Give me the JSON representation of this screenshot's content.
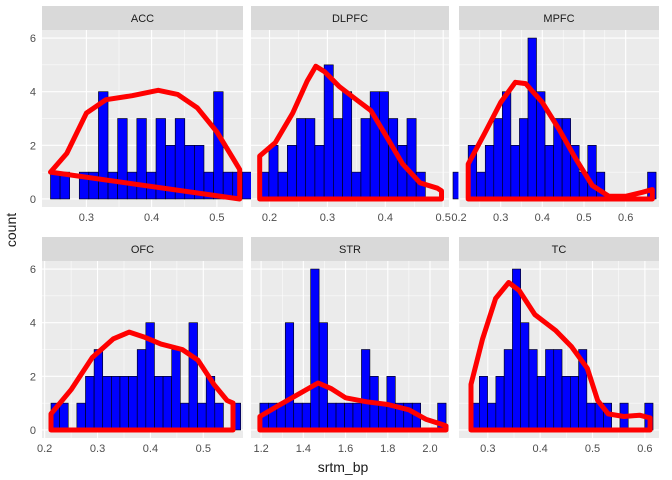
{
  "colors": {
    "panel_bg": "#EBEBEB",
    "strip_bg": "#D9D9D9",
    "grid_major": "#FFFFFF",
    "bar_fill": "#0000FF",
    "bar_stroke": "#000000",
    "density_line": "#FF0000",
    "text_dark": "#1A1A1A",
    "tick_text": "#4D4D4D"
  },
  "chart_data": {
    "type": "bar",
    "subtype": "faceted histogram with density overlay",
    "xlabel": "srtm_bp",
    "ylabel": "count",
    "grid": true,
    "legend": "none",
    "facets": [
      {
        "name": "ACC",
        "xlim": [
          0.232,
          0.54
        ],
        "ylim": [
          -0.3,
          6.3
        ],
        "x_ticks": [
          0.3,
          0.4,
          0.5
        ],
        "x_tick_labels": [
          "0.3",
          "0.4",
          "0.5"
        ],
        "y_ticks": [
          0,
          2,
          4,
          6
        ],
        "y_tick_labels": [
          "0",
          "2",
          "4",
          "6"
        ],
        "bin_start": 0.245,
        "bin_width": 0.0147,
        "counts": [
          1,
          1,
          0,
          1,
          1,
          4,
          1,
          3,
          1,
          3,
          1,
          3,
          2,
          3,
          2,
          2,
          1,
          4,
          1,
          1,
          1,
          1
        ],
        "density": [
          [
            0.245,
            1
          ],
          [
            0.27,
            1.7
          ],
          [
            0.3,
            3.2
          ],
          [
            0.33,
            3.7
          ],
          [
            0.37,
            3.85
          ],
          [
            0.41,
            4.05
          ],
          [
            0.44,
            3.9
          ],
          [
            0.47,
            3.4
          ],
          [
            0.5,
            2.5
          ],
          [
            0.525,
            1.5
          ],
          [
            0.535,
            1.1
          ],
          [
            0.535,
            0
          ]
        ]
      },
      {
        "name": "DLPFC",
        "xlim": [
          0.168,
          0.51
        ],
        "ylim": [
          -0.3,
          6.3
        ],
        "x_ticks": [
          0.2,
          0.3,
          0.4,
          0.5
        ],
        "x_tick_labels": [
          "0.2",
          "0.3",
          "0.4",
          "0.5"
        ],
        "y_ticks": [
          0,
          2,
          4,
          6
        ],
        "y_tick_labels": [
          "0",
          "2",
          "4",
          "6"
        ],
        "bin_start": 0.183,
        "bin_width": 0.0159,
        "counts": [
          1,
          2,
          1,
          2,
          3,
          3,
          2,
          5,
          3,
          4,
          1,
          3,
          4,
          4,
          3,
          2,
          3,
          1,
          0,
          0,
          0,
          1
        ],
        "density": [
          [
            0.183,
            0
          ],
          [
            0.183,
            1.6
          ],
          [
            0.21,
            2.1
          ],
          [
            0.24,
            3.2
          ],
          [
            0.265,
            4.4
          ],
          [
            0.28,
            4.95
          ],
          [
            0.295,
            4.75
          ],
          [
            0.32,
            4.2
          ],
          [
            0.35,
            3.7
          ],
          [
            0.375,
            3.3
          ],
          [
            0.4,
            2.4
          ],
          [
            0.43,
            1.3
          ],
          [
            0.46,
            0.6
          ],
          [
            0.49,
            0.4
          ],
          [
            0.497,
            0.3
          ],
          [
            0.497,
            0
          ]
        ]
      },
      {
        "name": "MPFC",
        "xlim": [
          0.2,
          0.68
        ],
        "ylim": [
          -0.3,
          6.3
        ],
        "x_ticks": [
          0.2,
          0.3,
          0.4,
          0.5,
          0.6
        ],
        "x_tick_labels": [
          "0.2",
          "0.3",
          "0.4",
          "0.5",
          "0.6"
        ],
        "y_ticks": [
          0,
          2,
          4,
          6
        ],
        "y_tick_labels": [
          "0",
          "2",
          "4",
          "6"
        ],
        "bin_start": 0.222,
        "bin_width": 0.0205,
        "counts": [
          2,
          1,
          2,
          3,
          4,
          2,
          3,
          6,
          4,
          2,
          3,
          3,
          2,
          1,
          2,
          1,
          0,
          0,
          0,
          0,
          0,
          1
        ],
        "density": [
          [
            0.222,
            0
          ],
          [
            0.222,
            1.3
          ],
          [
            0.26,
            2.4
          ],
          [
            0.3,
            3.6
          ],
          [
            0.335,
            4.35
          ],
          [
            0.36,
            4.3
          ],
          [
            0.4,
            3.6
          ],
          [
            0.44,
            2.6
          ],
          [
            0.48,
            1.5
          ],
          [
            0.52,
            0.5
          ],
          [
            0.56,
            0.1
          ],
          [
            0.6,
            0.1
          ],
          [
            0.64,
            0.25
          ],
          [
            0.664,
            0.35
          ],
          [
            0.664,
            0
          ]
        ]
      },
      {
        "name": "OFC",
        "xlim": [
          0.195,
          0.575
        ],
        "ylim": [
          -0.3,
          6.3
        ],
        "x_ticks": [
          0.2,
          0.3,
          0.4,
          0.5
        ],
        "x_tick_labels": [
          "0.2",
          "0.3",
          "0.4",
          "0.5"
        ],
        "y_ticks": [
          0,
          2,
          4,
          6
        ],
        "y_tick_labels": [
          "0",
          "2",
          "4",
          "6"
        ],
        "bin_start": 0.212,
        "bin_width": 0.0163,
        "counts": [
          1,
          1,
          0,
          1,
          2,
          3,
          2,
          2,
          2,
          2,
          3,
          4,
          2,
          2,
          3,
          1,
          4,
          1,
          2,
          1,
          0,
          1
        ],
        "density": [
          [
            0.212,
            0
          ],
          [
            0.212,
            0.6
          ],
          [
            0.25,
            1.5
          ],
          [
            0.29,
            2.7
          ],
          [
            0.33,
            3.4
          ],
          [
            0.36,
            3.65
          ],
          [
            0.39,
            3.45
          ],
          [
            0.42,
            3.2
          ],
          [
            0.46,
            3.0
          ],
          [
            0.49,
            2.6
          ],
          [
            0.52,
            1.7
          ],
          [
            0.545,
            1.1
          ],
          [
            0.556,
            1.0
          ],
          [
            0.556,
            0
          ]
        ]
      },
      {
        "name": "STR",
        "xlim": [
          1.152,
          2.09
        ],
        "ylim": [
          -0.3,
          6.3
        ],
        "x_ticks": [
          1.2,
          1.4,
          1.6,
          1.8,
          2.0
        ],
        "x_tick_labels": [
          "1.2",
          "1.4",
          "1.6",
          "1.8",
          "2.0"
        ],
        "y_ticks": [
          0,
          2,
          4,
          6
        ],
        "y_tick_labels": [
          "0",
          "2",
          "4",
          "6"
        ],
        "bin_start": 1.194,
        "bin_width": 0.0401,
        "counts": [
          1,
          1,
          1,
          4,
          1,
          1,
          6,
          4,
          1,
          1,
          1,
          1,
          3,
          2,
          1,
          2,
          1,
          1,
          1,
          0,
          0,
          1
        ],
        "density": [
          [
            1.194,
            0
          ],
          [
            1.194,
            0.5
          ],
          [
            1.28,
            0.9
          ],
          [
            1.38,
            1.35
          ],
          [
            1.47,
            1.75
          ],
          [
            1.53,
            1.55
          ],
          [
            1.6,
            1.2
          ],
          [
            1.7,
            1.05
          ],
          [
            1.8,
            0.95
          ],
          [
            1.9,
            0.75
          ],
          [
            1.98,
            0.4
          ],
          [
            2.06,
            0.2
          ],
          [
            2.076,
            0.15
          ],
          [
            2.076,
            0
          ]
        ]
      },
      {
        "name": "TC",
        "xlim": [
          0.245,
          0.627
        ],
        "ylim": [
          -0.3,
          6.3
        ],
        "x_ticks": [
          0.3,
          0.4,
          0.5,
          0.6
        ],
        "x_tick_labels": [
          "0.3",
          "0.4",
          "0.5",
          "0.6"
        ],
        "y_ticks": [
          0,
          2,
          4,
          6
        ],
        "y_tick_labels": [
          "0",
          "2",
          "4",
          "6"
        ],
        "bin_start": 0.268,
        "bin_width": 0.0158,
        "counts": [
          1,
          2,
          1,
          2,
          3,
          6,
          4,
          3,
          2,
          3,
          3,
          2,
          2,
          3,
          1,
          1,
          1,
          0,
          1,
          0,
          0,
          1
        ],
        "density": [
          [
            0.268,
            0
          ],
          [
            0.268,
            1.7
          ],
          [
            0.29,
            3.4
          ],
          [
            0.315,
            4.9
          ],
          [
            0.34,
            5.5
          ],
          [
            0.36,
            5.2
          ],
          [
            0.39,
            4.3
          ],
          [
            0.43,
            3.7
          ],
          [
            0.46,
            3.1
          ],
          [
            0.49,
            2.3
          ],
          [
            0.51,
            1.1
          ],
          [
            0.53,
            0.6
          ],
          [
            0.56,
            0.5
          ],
          [
            0.59,
            0.55
          ],
          [
            0.61,
            0.45
          ],
          [
            0.61,
            0
          ]
        ]
      }
    ]
  }
}
